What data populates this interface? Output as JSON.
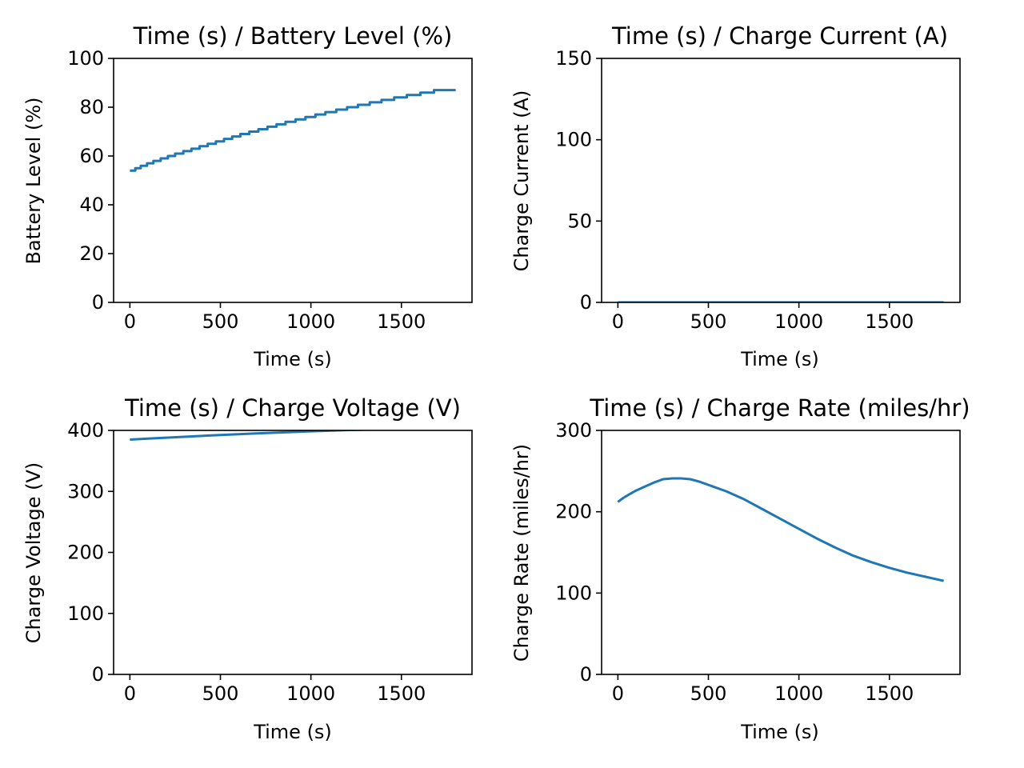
{
  "figure": {
    "background": "#ffffff",
    "line_color": "#1f77b4"
  },
  "chart_data": [
    {
      "type": "line",
      "title": "Time (s) / Battery Level (%)",
      "xlabel": "Time (s)",
      "ylabel": "Battery Level (%)",
      "xlim": [
        -90,
        1890
      ],
      "ylim": [
        0,
        100
      ],
      "xticks": [
        0,
        500,
        1000,
        1500
      ],
      "yticks": [
        0,
        20,
        40,
        60,
        80,
        100
      ],
      "grid": false,
      "step": true,
      "series": [
        {
          "x": [
            0,
            30,
            60,
            95,
            130,
            170,
            210,
            250,
            295,
            340,
            385,
            430,
            475,
            520,
            565,
            610,
            660,
            710,
            760,
            810,
            860,
            915,
            970,
            1025,
            1080,
            1140,
            1200,
            1260,
            1325,
            1390,
            1460,
            1530,
            1605,
            1680,
            1760,
            1800
          ],
          "y": [
            54,
            55,
            56,
            57,
            58,
            59,
            60,
            61,
            62,
            63,
            64,
            65,
            66,
            67,
            68,
            69,
            70,
            71,
            72,
            73,
            74,
            75,
            76,
            77,
            78,
            79,
            80,
            81,
            82,
            83,
            84,
            85,
            86,
            87,
            87,
            87
          ]
        }
      ]
    },
    {
      "type": "line",
      "title": "Time (s) / Charge Current (A)",
      "xlabel": "Time (s)",
      "ylabel": "Charge Current (A)",
      "xlim": [
        -90,
        1890
      ],
      "ylim": [
        0,
        150
      ],
      "xticks": [
        0,
        500,
        1000,
        1500
      ],
      "yticks": [
        0,
        50,
        100,
        150
      ],
      "grid": false,
      "series": [
        {
          "x": [
            0,
            1800
          ],
          "y": [
            0,
            0
          ]
        }
      ]
    },
    {
      "type": "line",
      "title": "Time (s) / Charge Voltage (V)",
      "xlabel": "Time (s)",
      "ylabel": "Charge Voltage (V)",
      "xlim": [
        -90,
        1890
      ],
      "ylim": [
        0,
        400
      ],
      "xticks": [
        0,
        500,
        1000,
        1500
      ],
      "yticks": [
        0,
        100,
        200,
        300,
        400
      ],
      "grid": false,
      "series": [
        {
          "x": [
            0,
            100,
            200,
            300,
            400,
            500,
            600,
            700,
            800,
            900,
            1000,
            1100,
            1200,
            1400,
            1600,
            1800
          ],
          "y": [
            385,
            386.5,
            388,
            389.5,
            391,
            392.5,
            393.8,
            395,
            396.2,
            397.4,
            398.5,
            399.5,
            400.5,
            402,
            403,
            404
          ]
        }
      ]
    },
    {
      "type": "line",
      "title": "Time (s) / Charge Rate (miles/hr)",
      "xlabel": "Time (s)",
      "ylabel": "Charge Rate (miles/hr)",
      "xlim": [
        -90,
        1890
      ],
      "ylim": [
        0,
        300
      ],
      "xticks": [
        0,
        500,
        1000,
        1500
      ],
      "yticks": [
        0,
        100,
        200,
        300
      ],
      "grid": false,
      "series": [
        {
          "x": [
            0,
            30,
            60,
            100,
            150,
            200,
            250,
            300,
            350,
            400,
            450,
            500,
            600,
            700,
            800,
            900,
            1000,
            1100,
            1200,
            1300,
            1400,
            1500,
            1600,
            1700,
            1800
          ],
          "y": [
            212,
            217,
            221,
            226,
            231,
            236,
            240,
            241,
            241,
            240,
            237,
            233,
            225,
            215,
            203,
            191,
            179,
            167,
            156,
            146,
            138,
            131,
            125,
            120,
            115
          ]
        }
      ]
    }
  ]
}
